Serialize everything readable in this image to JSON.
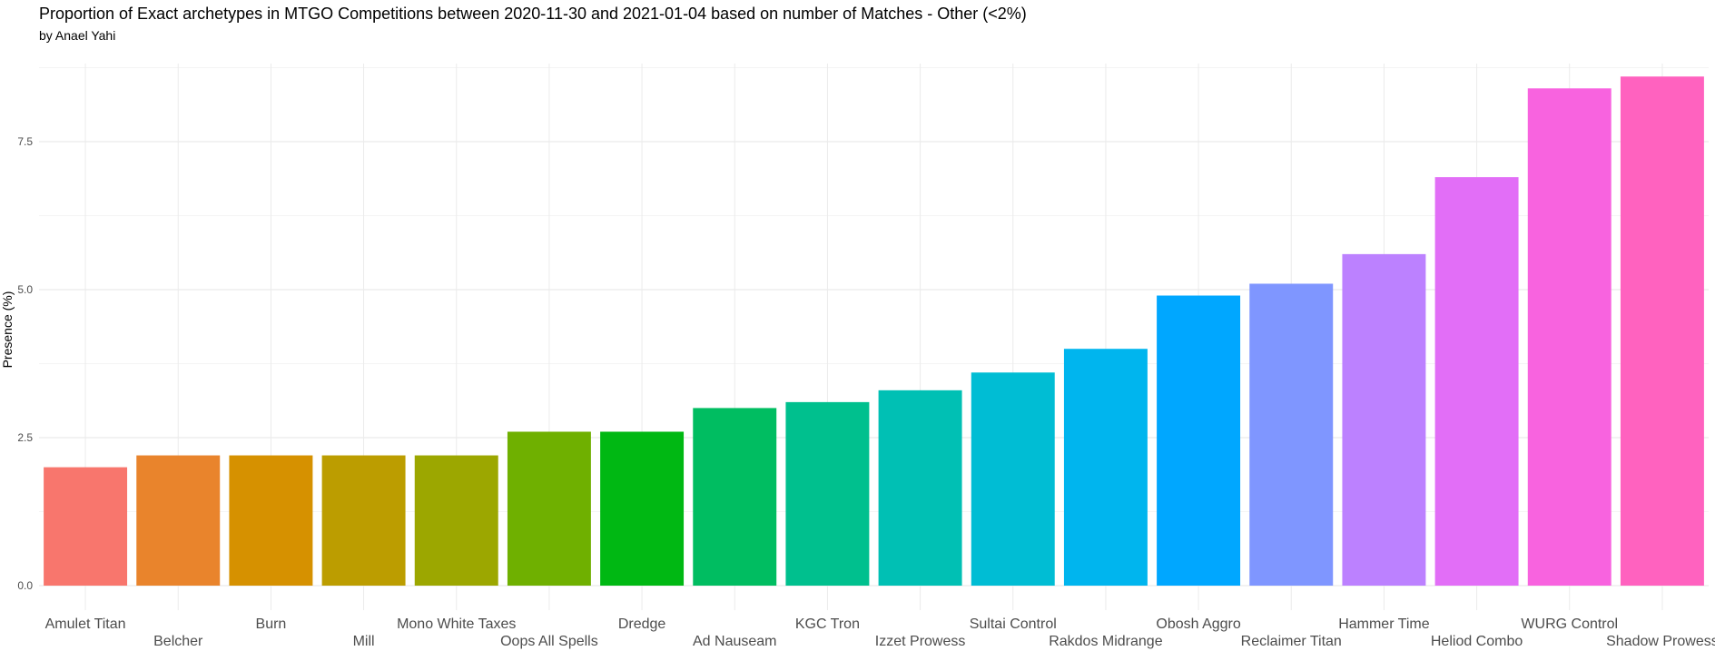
{
  "chart_data": {
    "type": "bar",
    "title": "Proportion of Exact archetypes in MTGO Competitions between 2020-11-30 and 2021-01-04 based on number of Matches - Other (<2%)",
    "subtitle": "by Anael Yahi",
    "xlabel": "",
    "ylabel": "Presence (%)",
    "ylim": [
      0,
      8.8
    ],
    "yticks": [
      0,
      2.5,
      5,
      7.5
    ],
    "ytick_labels": [
      "0.0",
      "2.5",
      "5.0",
      "7.5"
    ],
    "grid": true,
    "categories": [
      "Amulet Titan",
      "Belcher",
      "Burn",
      "Mill",
      "Mono White Taxes",
      "Oops All Spells",
      "Dredge",
      "Ad Nauseam",
      "KGC Tron",
      "Izzet Prowess",
      "Sultai Control",
      "Rakdos Midrange",
      "Obosh Aggro",
      "Reclaimer Titan",
      "Hammer Time",
      "Heliod Combo",
      "WURG Control",
      "Shadow Prowess"
    ],
    "values": [
      2.0,
      2.2,
      2.2,
      2.2,
      2.2,
      2.6,
      2.6,
      3.0,
      3.1,
      3.3,
      3.6,
      4.0,
      4.9,
      5.1,
      5.6,
      6.9,
      8.4,
      8.6
    ],
    "colors": [
      "#F8766D",
      "#E9842C",
      "#D69100",
      "#BC9D00",
      "#9CA700",
      "#6FB000",
      "#00B813",
      "#00BD61",
      "#00C08E",
      "#00C0B4",
      "#00BDD4",
      "#00B5EE",
      "#00A7FF",
      "#7F96FF",
      "#BC81FF",
      "#E26EF7",
      "#F863DF",
      "#FF62BF"
    ]
  }
}
